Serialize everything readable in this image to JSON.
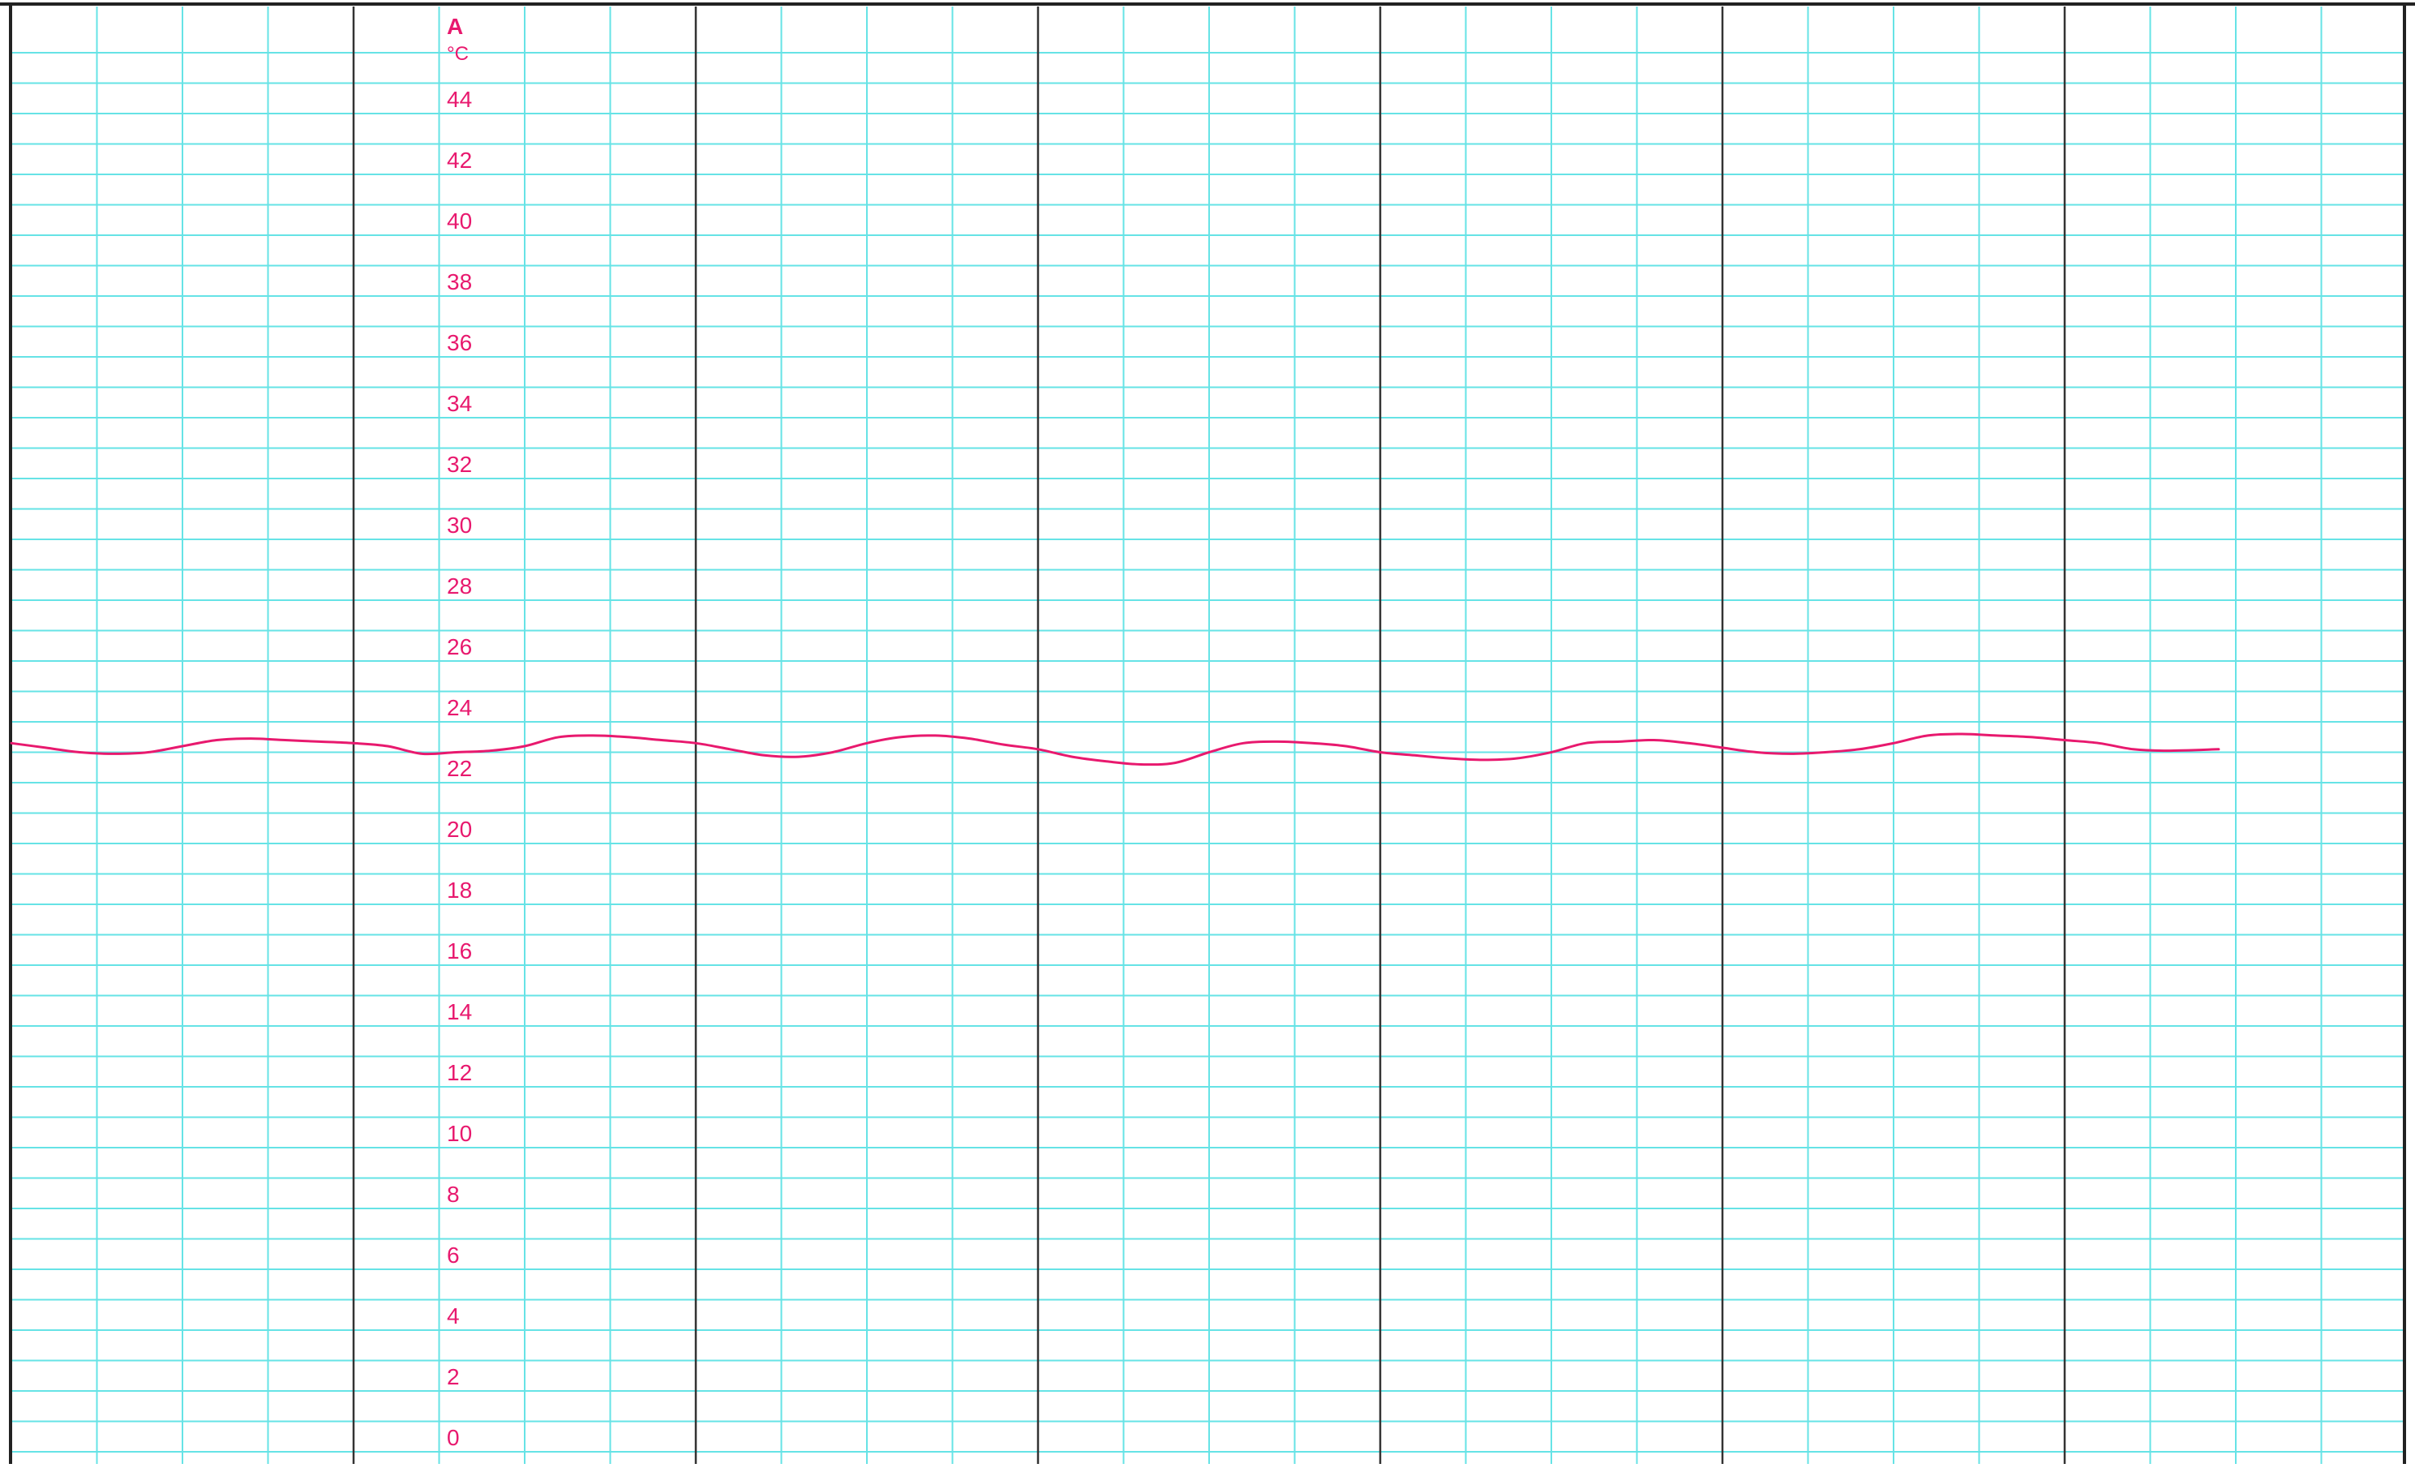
{
  "chart_data": {
    "type": "line",
    "title": "",
    "channel_label": "A",
    "unit": "°C",
    "xlabel": "",
    "ylabel": "",
    "ylim": [
      0,
      46
    ],
    "y_ticks": [
      0,
      2,
      4,
      6,
      8,
      10,
      12,
      14,
      16,
      18,
      20,
      22,
      24,
      26,
      28,
      30,
      32,
      34,
      36,
      38,
      40,
      42,
      44
    ],
    "x_domain": [
      0,
      7
    ],
    "x_minor_divisions": 4,
    "grid": true,
    "colors": {
      "line": "#e8196e",
      "labels": "#e8196e",
      "minor_grid": "#66e3e6",
      "major_grid": "#333333",
      "border": "#222222"
    },
    "series": [
      {
        "x": [
          0,
          0.1,
          0.2,
          0.3,
          0.4,
          0.5,
          0.6,
          0.7,
          0.8,
          0.9,
          1.0,
          1.1,
          1.2,
          1.3,
          1.4,
          1.5,
          1.6,
          1.7,
          1.8,
          1.9,
          2.0,
          2.1,
          2.2,
          2.3,
          2.4,
          2.5,
          2.6,
          2.7,
          2.8,
          2.9,
          3.0,
          3.1,
          3.2,
          3.3,
          3.4,
          3.5,
          3.6,
          3.7,
          3.8,
          3.9,
          4.0,
          4.1,
          4.2,
          4.3,
          4.4,
          4.5,
          4.6,
          4.7,
          4.8,
          4.9,
          5.0,
          5.1,
          5.2,
          5.3,
          5.4,
          5.5,
          5.6,
          5.7,
          5.8,
          5.9,
          6.0,
          6.1,
          6.2,
          6.3,
          6.45
        ],
        "values": [
          23.3,
          23.15,
          23.0,
          22.95,
          23.0,
          23.2,
          23.4,
          23.45,
          23.4,
          23.35,
          23.3,
          23.2,
          22.95,
          23.0,
          23.05,
          23.2,
          23.5,
          23.55,
          23.5,
          23.4,
          23.3,
          23.1,
          22.9,
          22.85,
          23.0,
          23.3,
          23.5,
          23.55,
          23.45,
          23.25,
          23.1,
          22.85,
          22.7,
          22.6,
          22.65,
          23.0,
          23.3,
          23.35,
          23.3,
          23.2,
          23.0,
          22.9,
          22.8,
          22.75,
          22.8,
          23.0,
          23.3,
          23.35,
          23.4,
          23.3,
          23.15,
          23.0,
          22.95,
          23.0,
          23.1,
          23.3,
          23.55,
          23.6,
          23.55,
          23.5,
          23.4,
          23.3,
          23.1,
          23.05,
          23.1
        ]
      }
    ]
  }
}
